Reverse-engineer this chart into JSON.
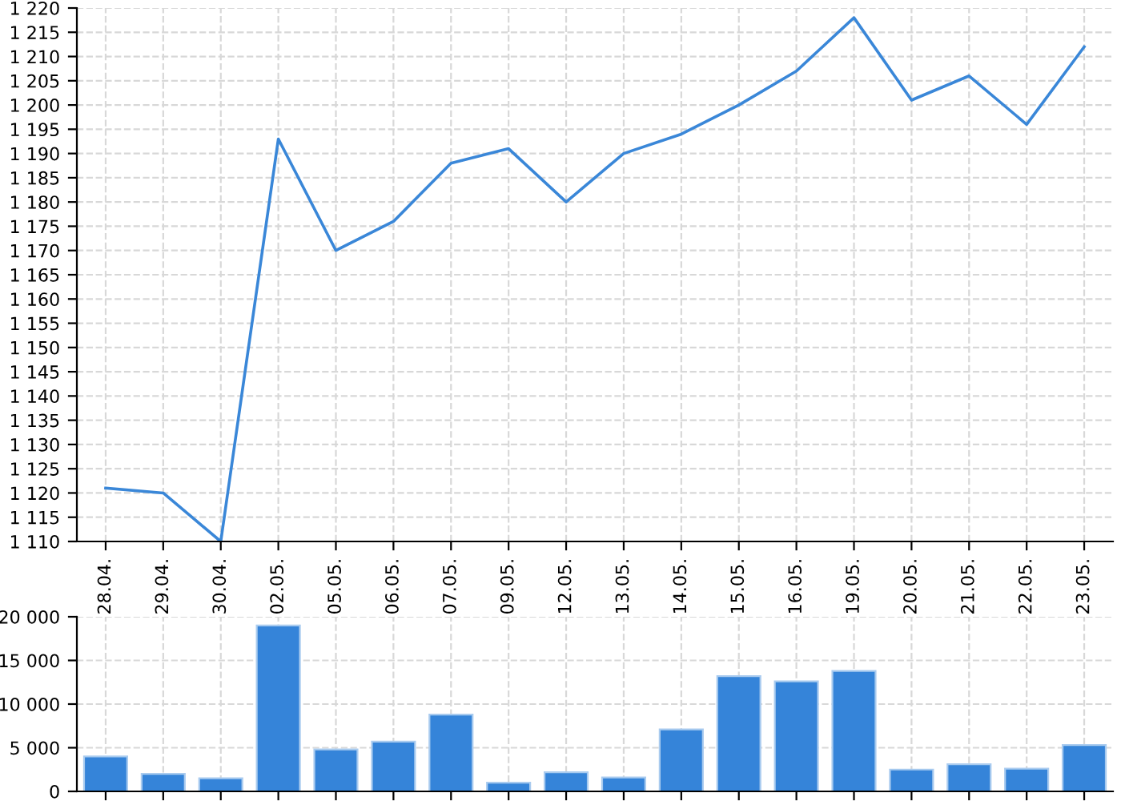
{
  "chart_data": [
    {
      "type": "line",
      "categories": [
        "28.04.",
        "29.04.",
        "30.04.",
        "02.05.",
        "05.05.",
        "06.05.",
        "07.05.",
        "09.05.",
        "12.05.",
        "13.05.",
        "14.05.",
        "15.05.",
        "16.05.",
        "19.05.",
        "20.05.",
        "21.05.",
        "22.05.",
        "23.05."
      ],
      "series": [
        {
          "color": "#3a87d8",
          "values": [
            1121,
            1120,
            1110,
            1193,
            1170,
            1176,
            1188,
            1191,
            1180,
            1190,
            1194,
            1200,
            1207,
            1218,
            1201,
            1206,
            1196,
            1212
          ]
        }
      ],
      "ylim": [
        1110,
        1220
      ],
      "yticks": [
        {
          "value": 1110,
          "label": "1 110"
        },
        {
          "value": 1115,
          "label": "1 115"
        },
        {
          "value": 1120,
          "label": "1 120"
        },
        {
          "value": 1125,
          "label": "1 125"
        },
        {
          "value": 1130,
          "label": "1 130"
        },
        {
          "value": 1135,
          "label": "1 135"
        },
        {
          "value": 1140,
          "label": "1 140"
        },
        {
          "value": 1145,
          "label": "1 145"
        },
        {
          "value": 1150,
          "label": "1 150"
        },
        {
          "value": 1155,
          "label": "1 155"
        },
        {
          "value": 1160,
          "label": "1 160"
        },
        {
          "value": 1165,
          "label": "1 165"
        },
        {
          "value": 1170,
          "label": "1 170"
        },
        {
          "value": 1175,
          "label": "1 175"
        },
        {
          "value": 1180,
          "label": "1 180"
        },
        {
          "value": 1185,
          "label": "1 185"
        },
        {
          "value": 1190,
          "label": "1 190"
        },
        {
          "value": 1195,
          "label": "1 195"
        },
        {
          "value": 1200,
          "label": "1 200"
        },
        {
          "value": 1205,
          "label": "1 205"
        },
        {
          "value": 1210,
          "label": "1 210"
        },
        {
          "value": 1215,
          "label": "1 215"
        },
        {
          "value": 1220,
          "label": "1 220"
        }
      ],
      "grid": true,
      "line_style": "solid"
    },
    {
      "type": "bar",
      "categories": [
        "28.04.",
        "29.04.",
        "30.04.",
        "02.05.",
        "05.05.",
        "06.05.",
        "07.05.",
        "09.05.",
        "12.05.",
        "13.05.",
        "14.05.",
        "15.05.",
        "16.05.",
        "19.05.",
        "20.05.",
        "21.05.",
        "22.05.",
        "23.05."
      ],
      "series": [
        {
          "color": "#3584d9",
          "values": [
            4000,
            2000,
            1500,
            19000,
            4800,
            5700,
            8800,
            1000,
            2200,
            1600,
            7100,
            13200,
            12600,
            13800,
            2500,
            3100,
            2600,
            5300
          ]
        }
      ],
      "ylim": [
        0,
        20000
      ],
      "yticks": [
        0,
        {
          "value": 5000,
          "label": "5 000"
        },
        {
          "value": 10000,
          "label": "10 000"
        },
        {
          "value": 15000,
          "label": "15 000"
        },
        {
          "value": 20000,
          "label": "20 000"
        }
      ],
      "grid": true,
      "tick_labels": "y"
    }
  ]
}
